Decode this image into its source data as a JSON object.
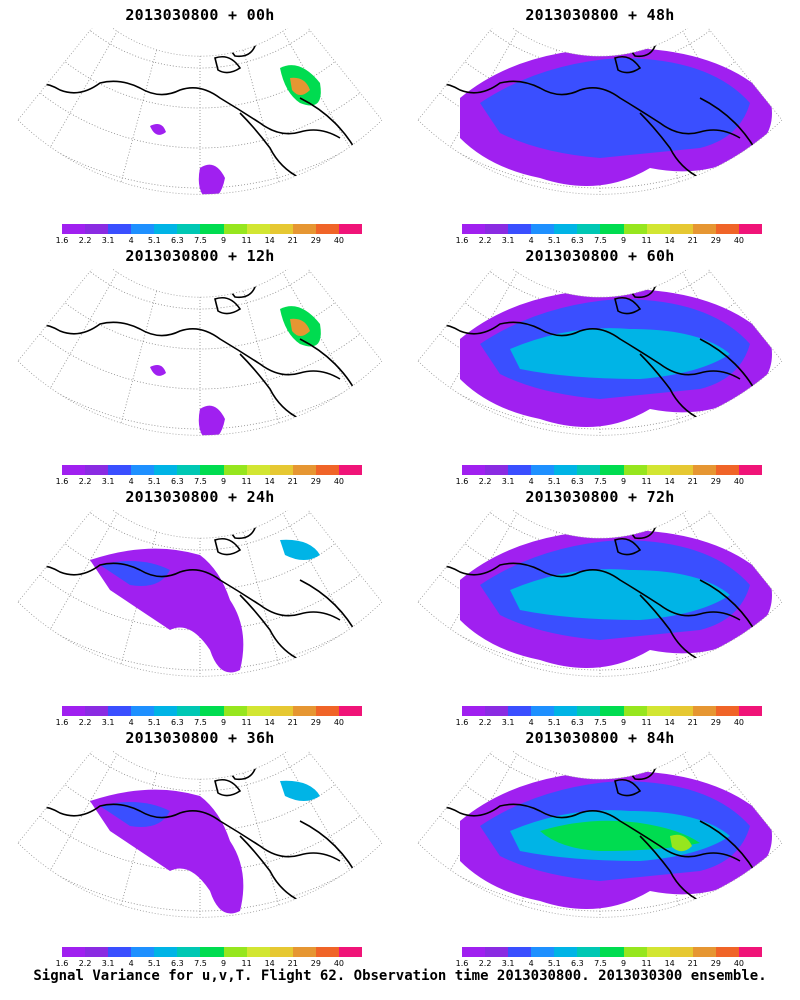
{
  "colorbar": {
    "colors": [
      "#a020f0",
      "#8a2be2",
      "#3a4fff",
      "#1e90ff",
      "#00b4e6",
      "#00c8b4",
      "#00dc50",
      "#96e61e",
      "#d2e632",
      "#e6c832",
      "#e69632",
      "#f06428",
      "#f01478"
    ],
    "labels": [
      "1.6",
      "2.2",
      "3.1",
      "4",
      "5.1",
      "6.3",
      "7.5",
      "9",
      "11",
      "14",
      "21",
      "29",
      "40"
    ]
  },
  "panels": [
    {
      "title": "2013030800  + 00h",
      "level": 0
    },
    {
      "title": "2013030800  + 48h",
      "level": 2
    },
    {
      "title": "2013030800  + 12h",
      "level": 0
    },
    {
      "title": "2013030800  + 60h",
      "level": 3
    },
    {
      "title": "2013030800  + 24h",
      "level": 1
    },
    {
      "title": "2013030800  + 72h",
      "level": 3
    },
    {
      "title": "2013030800  + 36h",
      "level": 1
    },
    {
      "title": "2013030800  + 84h",
      "level": 4
    }
  ],
  "footer": "Signal Variance for u,v,T. Flight 62. Observation time 2013030800. 2013030300 ensemble."
}
